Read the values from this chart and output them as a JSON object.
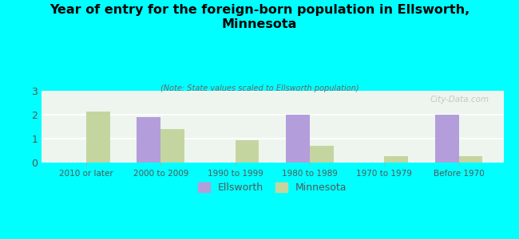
{
  "title": "Year of entry for the foreign-born population in Ellsworth,\nMinnesota",
  "subtitle": "(Note: State values scaled to Ellsworth population)",
  "categories": [
    "2010 or later",
    "2000 to 2009",
    "1990 to 1999",
    "1980 to 1989",
    "1970 to 1979",
    "Before 1970"
  ],
  "ellsworth_values": [
    0,
    1.9,
    0,
    2.0,
    0,
    2.0
  ],
  "minnesota_values": [
    2.15,
    1.4,
    0.95,
    0.7,
    0.27,
    0.27
  ],
  "ellsworth_color": "#b39ddb",
  "minnesota_color": "#c5d5a0",
  "background_color": "#00ffff",
  "plot_bg_color": "#eef5ee",
  "ylim": [
    0,
    3
  ],
  "yticks": [
    0,
    1,
    2,
    3
  ],
  "bar_width": 0.32,
  "watermark": "City-Data.com",
  "legend_labels": [
    "Ellsworth",
    "Minnesota"
  ]
}
